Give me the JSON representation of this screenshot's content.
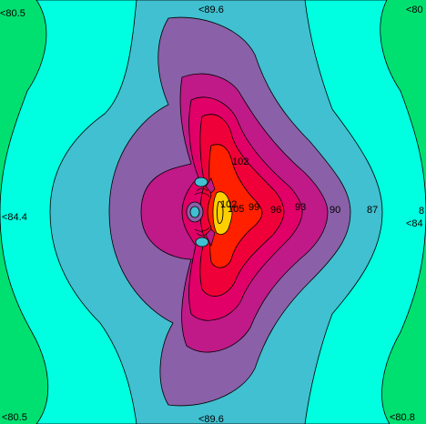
{
  "chart_data": {
    "type": "contour",
    "title": "",
    "xlabel": "",
    "ylabel": "",
    "grid": false,
    "legend": "none",
    "levels": [
      {
        "value": 80,
        "color": "#00e070"
      },
      {
        "value": 84,
        "color": "#00ffe0"
      },
      {
        "value": 87,
        "color": "#40c0d0"
      },
      {
        "value": 90,
        "color": "#8a60a8"
      },
      {
        "value": 93,
        "color": "#c01a88"
      },
      {
        "value": 96,
        "color": "#e00068"
      },
      {
        "value": 99,
        "color": "#f00038"
      },
      {
        "value": 102,
        "color": "#ff2000"
      },
      {
        "value": 105,
        "color": "#ffd000"
      }
    ],
    "labels": [
      {
        "id": "top-left",
        "text": "<80.5"
      },
      {
        "id": "top-center",
        "text": "<89.6"
      },
      {
        "id": "top-right",
        "text": "<80"
      },
      {
        "id": "left",
        "text": "<84.4"
      },
      {
        "id": "right-a",
        "text": "<84"
      },
      {
        "id": "right-b",
        "text": "8"
      },
      {
        "id": "bottom-left",
        "text": "<80.5"
      },
      {
        "id": "bottom-center",
        "text": "<89.6"
      },
      {
        "id": "bottom-right",
        "text": "<80.8"
      },
      {
        "id": "c87",
        "text": "87"
      },
      {
        "id": "c90",
        "text": "90"
      },
      {
        "id": "c93",
        "text": "93"
      },
      {
        "id": "c96",
        "text": "96"
      },
      {
        "id": "c99",
        "text": "99"
      },
      {
        "id": "c102",
        "text": "102"
      },
      {
        "id": "c105",
        "text": "105"
      },
      {
        "id": "c102b",
        "text": "102"
      }
    ]
  }
}
